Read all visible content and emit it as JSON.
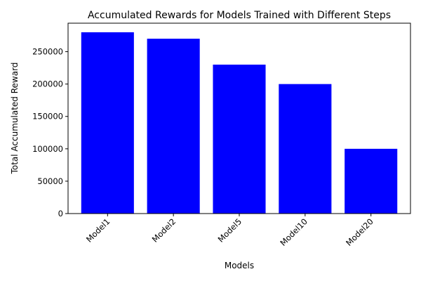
{
  "chart_data": {
    "type": "bar",
    "title": "Accumulated Rewards for Models Trained with Different Steps",
    "xlabel": "Models",
    "ylabel": "Total Accumulated Reward",
    "categories": [
      "Model1",
      "Model2",
      "Model5",
      "Model10",
      "Model20"
    ],
    "values": [
      280000,
      270000,
      230000,
      200000,
      100000
    ],
    "ylim": [
      0,
      294000
    ],
    "yticks": [
      0,
      50000,
      100000,
      150000,
      200000,
      250000
    ],
    "bar_color": "#0000ff",
    "grid": false,
    "legend": "none"
  }
}
